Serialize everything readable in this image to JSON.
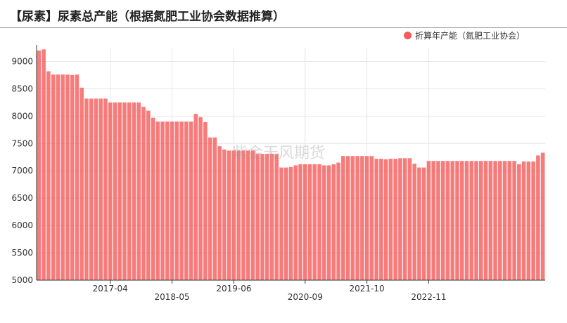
{
  "title": "【尿素】尿素总产能（根据氮肥工业协会数据推算）",
  "watermark": "紫金天风期货",
  "colors": {
    "bar": "#f45b5b",
    "grid": "#e6e6e6",
    "axis": "#333333"
  },
  "chart_data": {
    "type": "bar",
    "title": "【尿素】尿素总产能（根据氮肥工业协会数据推算）",
    "xlabel": "",
    "ylabel": "",
    "ylim": [
      5000,
      9250
    ],
    "yticks": [
      5000,
      5500,
      6000,
      6500,
      7000,
      7500,
      8000,
      8500,
      9000
    ],
    "grid": true,
    "legend_position": "top-right",
    "x_start": "2016-01",
    "x_ticks": [
      {
        "label": "2017-04",
        "index": 15,
        "row": 0
      },
      {
        "label": "2018-05",
        "index": 28,
        "row": 1
      },
      {
        "label": "2019-06",
        "index": 41,
        "row": 0
      },
      {
        "label": "2020-09",
        "index": 56,
        "row": 1
      },
      {
        "label": "2021-10",
        "index": 69,
        "row": 0
      },
      {
        "label": "2022-11",
        "index": 82,
        "row": 1
      }
    ],
    "series": [
      {
        "name": "折算年产能（氮肥工业协会）",
        "values": [
          9200,
          9220,
          8820,
          8760,
          8760,
          8760,
          8760,
          8750,
          8760,
          8520,
          8320,
          8320,
          8320,
          8320,
          8320,
          8250,
          8250,
          8250,
          8250,
          8250,
          8250,
          8250,
          8170,
          8100,
          7970,
          7900,
          7900,
          7900,
          7900,
          7900,
          7900,
          7900,
          7900,
          8040,
          7980,
          7890,
          7610,
          7610,
          7450,
          7390,
          7370,
          7370,
          7370,
          7370,
          7370,
          7370,
          7310,
          7310,
          7310,
          7310,
          7310,
          7060,
          7060,
          7070,
          7100,
          7120,
          7120,
          7120,
          7120,
          7120,
          7100,
          7100,
          7120,
          7150,
          7270,
          7270,
          7270,
          7270,
          7270,
          7270,
          7270,
          7220,
          7220,
          7210,
          7220,
          7220,
          7230,
          7230,
          7230,
          7130,
          7060,
          7060,
          7180,
          7180,
          7180,
          7180,
          7180,
          7180,
          7180,
          7180,
          7180,
          7180,
          7180,
          7180,
          7180,
          7180,
          7180,
          7180,
          7180,
          7180,
          7180,
          7120,
          7170,
          7170,
          7170,
          7280,
          7330
        ]
      }
    ]
  }
}
